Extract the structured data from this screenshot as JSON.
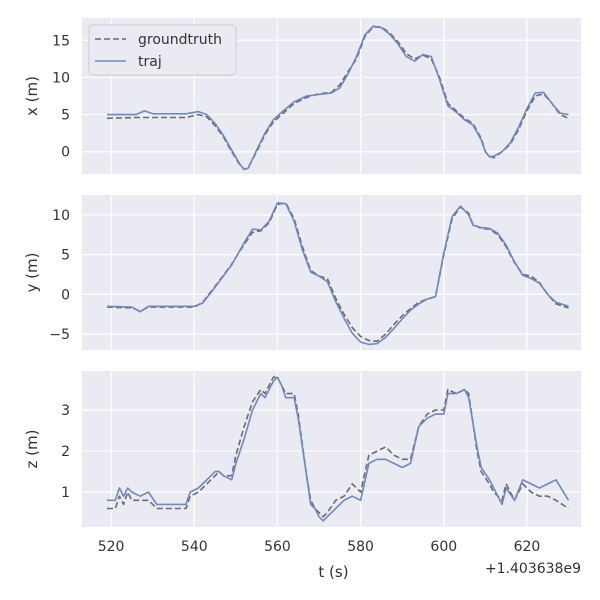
{
  "chart_data": {
    "type": "line",
    "x_offset_label": "+1.403638e9",
    "xlabel": "t (s)",
    "xlim": [
      513,
      633
    ],
    "x_ticks": [
      520,
      540,
      560,
      580,
      600,
      620
    ],
    "x_tick_labels": [
      "520",
      "540",
      "560",
      "580",
      "600",
      "620"
    ],
    "grid": true,
    "legend": {
      "placement": "top-left",
      "entries": [
        {
          "name": "groundtruth",
          "style": "dashed",
          "color": "#6b6b6b"
        },
        {
          "name": "traj",
          "style": "solid",
          "color": "#6f88c3"
        }
      ]
    },
    "panels": [
      {
        "ylabel": "x (m)",
        "ylim": [
          -3.0,
          18.0
        ],
        "y_ticks": [
          0,
          5,
          10,
          15
        ],
        "y_tick_labels": [
          "0",
          "5",
          "10",
          "15"
        ],
        "series": [
          {
            "name": "groundtruth",
            "x": [
              519,
              526,
              530,
              534,
              538,
              541,
              543,
              545,
              547,
              549,
              551,
              552,
              553,
              555,
              557,
              559,
              561,
              564,
              567,
              570,
              573,
              575,
              577,
              579,
              581,
              583,
              585,
              587,
              589,
              591,
              593,
              595,
              597,
              599,
              601,
              603,
              605,
              607,
              609,
              610,
              611,
              612,
              614,
              616,
              618,
              620,
              622,
              624,
              626,
              628,
              630
            ],
            "y": [
              4.5,
              4.6,
              4.6,
              4.6,
              4.6,
              5.0,
              4.7,
              3.5,
              2.0,
              0.0,
              -1.8,
              -2.4,
              -2.1,
              0.0,
              2.3,
              4.0,
              5.0,
              6.5,
              7.3,
              7.8,
              8.0,
              9.0,
              10.8,
              12.5,
              15.5,
              16.8,
              16.8,
              16.0,
              14.8,
              13.2,
              12.5,
              13.0,
              12.5,
              10.0,
              6.5,
              5.5,
              4.5,
              3.8,
              1.8,
              0.0,
              -0.6,
              -0.8,
              0.0,
              1.0,
              3.0,
              5.5,
              7.5,
              7.8,
              6.5,
              5.0,
              4.5
            ]
          },
          {
            "name": "traj",
            "x": [
              519,
              526,
              528,
              530,
              534,
              538,
              541,
              543,
              545,
              547,
              549,
              551,
              552,
              553,
              555,
              557,
              559,
              561,
              564,
              567,
              570,
              573,
              575,
              577,
              579,
              581,
              583,
              585,
              587,
              589,
              591,
              593,
              595,
              597,
              599,
              601,
              603,
              605,
              607,
              609,
              610,
              611,
              612,
              614,
              616,
              618,
              620,
              622,
              624,
              626,
              628,
              630
            ],
            "y": [
              5.0,
              5.0,
              5.5,
              5.1,
              5.1,
              5.1,
              5.4,
              5.0,
              3.8,
              2.2,
              0.2,
              -1.7,
              -2.4,
              -2.2,
              0.2,
              2.5,
              4.3,
              5.3,
              6.7,
              7.5,
              7.7,
              7.9,
              8.6,
              10.5,
              12.8,
              15.7,
              16.9,
              16.7,
              15.8,
              14.5,
              12.8,
              12.2,
              13.1,
              12.8,
              9.7,
              6.2,
              5.3,
              4.3,
              3.6,
              1.6,
              0.0,
              -0.7,
              -0.6,
              0.0,
              1.2,
              3.3,
              5.8,
              7.9,
              8.0,
              6.5,
              5.2,
              5.0
            ]
          }
        ]
      },
      {
        "ylabel": "y (m)",
        "ylim": [
          -7.0,
          12.5
        ],
        "y_ticks": [
          -5,
          0,
          5,
          10
        ],
        "y_tick_labels": [
          "−5",
          "0",
          "5",
          "10"
        ],
        "series": [
          {
            "name": "groundtruth",
            "x": [
              519,
              525,
              527,
              529,
              535,
              540,
              542,
              545,
              549,
              552,
              554,
              556,
              558,
              560,
              562,
              564,
              566,
              568,
              570,
              572,
              574,
              576,
              578,
              580,
              582,
              584,
              586,
              588,
              590,
              592,
              594,
              596,
              598,
              600,
              602,
              604,
              606,
              607,
              609,
              611,
              613,
              615,
              617,
              619,
              621,
              623,
              625,
              627,
              630
            ],
            "y": [
              -1.6,
              -1.7,
              -2.1,
              -1.6,
              -1.6,
              -1.6,
              -1.0,
              1.0,
              3.8,
              6.3,
              7.8,
              8.0,
              9.0,
              11.3,
              11.5,
              9.5,
              6.0,
              3.0,
              2.3,
              2.0,
              -0.5,
              -2.5,
              -4.2,
              -5.3,
              -5.8,
              -5.9,
              -5.0,
              -3.8,
              -2.7,
              -1.8,
              -1.0,
              -0.6,
              -0.3,
              5.0,
              9.5,
              11.0,
              10.2,
              8.8,
              8.3,
              8.2,
              7.5,
              6.0,
              4.0,
              2.5,
              2.3,
              1.5,
              0.0,
              -1.2,
              -1.7
            ]
          },
          {
            "name": "traj",
            "x": [
              519,
              525,
              527,
              529,
              535,
              540,
              542,
              545,
              549,
              552,
              554,
              556,
              558,
              560,
              562,
              564,
              566,
              568,
              570,
              572,
              574,
              576,
              578,
              580,
              582,
              584,
              586,
              588,
              590,
              592,
              594,
              596,
              598,
              600,
              602,
              604,
              606,
              607,
              609,
              611,
              613,
              615,
              617,
              619,
              621,
              623,
              625,
              627,
              630
            ],
            "y": [
              -1.5,
              -1.6,
              -2.2,
              -1.5,
              -1.5,
              -1.5,
              -1.1,
              0.9,
              3.7,
              6.5,
              8.2,
              8.1,
              9.2,
              11.5,
              11.4,
              9.2,
              5.6,
              2.8,
              2.3,
              1.6,
              -0.9,
              -3.0,
              -4.9,
              -6.0,
              -6.3,
              -6.2,
              -5.4,
              -4.3,
              -3.1,
              -2.0,
              -1.2,
              -0.6,
              -0.3,
              5.2,
              9.8,
              11.1,
              10.0,
              8.7,
              8.4,
              8.3,
              7.7,
              6.2,
              4.1,
              2.4,
              2.0,
              1.4,
              0.0,
              -1.0,
              -1.5
            ]
          }
        ]
      },
      {
        "ylabel": "z (m)",
        "ylim": [
          0.15,
          3.95
        ],
        "y_ticks": [
          1,
          2,
          3
        ],
        "y_tick_labels": [
          "1",
          "2",
          "3"
        ],
        "series": [
          {
            "name": "groundtruth",
            "x": [
              519,
              521,
              522,
              523,
              524,
              525,
              527,
              529,
              531,
              532,
              535,
              538,
              539,
              541,
              543,
              545,
              546,
              547,
              549,
              550,
              552,
              554,
              556,
              557,
              559,
              560,
              561,
              562,
              564,
              565,
              567,
              568,
              569,
              570,
              571,
              572,
              574,
              576,
              578,
              580,
              582,
              584,
              586,
              588,
              590,
              592,
              594,
              596,
              598,
              600,
              601,
              603,
              605,
              606,
              608,
              609,
              611,
              612,
              614,
              615,
              617,
              619,
              621,
              623,
              625,
              627,
              630
            ],
            "y": [
              0.6,
              0.6,
              0.9,
              0.7,
              1.0,
              0.8,
              0.8,
              0.8,
              0.6,
              0.6,
              0.6,
              0.6,
              0.9,
              1.0,
              1.2,
              1.4,
              1.5,
              1.4,
              1.4,
              1.9,
              2.6,
              3.2,
              3.5,
              3.4,
              3.8,
              3.8,
              3.6,
              3.4,
              3.4,
              2.9,
              1.4,
              0.8,
              0.6,
              0.5,
              0.4,
              0.5,
              0.8,
              0.9,
              1.2,
              1.0,
              1.9,
              2.0,
              2.1,
              1.9,
              1.8,
              1.8,
              2.6,
              2.9,
              3.0,
              3.0,
              3.5,
              3.4,
              3.5,
              3.4,
              2.0,
              1.5,
              1.2,
              1.0,
              0.8,
              1.2,
              0.8,
              1.2,
              1.0,
              0.9,
              0.9,
              0.8,
              0.6
            ]
          },
          {
            "name": "traj",
            "x": [
              519,
              521,
              522,
              523,
              524,
              525,
              527,
              529,
              531,
              532,
              535,
              538,
              539,
              541,
              543,
              545,
              546,
              547,
              549,
              550,
              552,
              554,
              556,
              557,
              559,
              560,
              561,
              562,
              564,
              565,
              567,
              568,
              569,
              570,
              571,
              572,
              574,
              576,
              578,
              580,
              582,
              584,
              586,
              588,
              590,
              592,
              594,
              596,
              598,
              600,
              601,
              603,
              605,
              606,
              608,
              609,
              611,
              612,
              614,
              615,
              617,
              619,
              621,
              623,
              625,
              627,
              630
            ],
            "y": [
              0.8,
              0.8,
              1.1,
              0.9,
              1.1,
              1.0,
              0.9,
              1.0,
              0.7,
              0.7,
              0.7,
              0.7,
              1.0,
              1.1,
              1.3,
              1.5,
              1.5,
              1.4,
              1.3,
              1.7,
              2.3,
              3.0,
              3.4,
              3.3,
              3.7,
              3.8,
              3.6,
              3.3,
              3.3,
              2.8,
              1.4,
              0.7,
              0.6,
              0.4,
              0.3,
              0.4,
              0.6,
              0.8,
              0.9,
              0.8,
              1.7,
              1.8,
              1.8,
              1.7,
              1.6,
              1.7,
              2.6,
              2.8,
              2.9,
              2.9,
              3.4,
              3.4,
              3.5,
              3.3,
              2.1,
              1.6,
              1.3,
              1.1,
              0.7,
              1.1,
              0.8,
              1.3,
              1.2,
              1.1,
              1.2,
              1.3,
              0.8
            ]
          }
        ]
      }
    ]
  }
}
